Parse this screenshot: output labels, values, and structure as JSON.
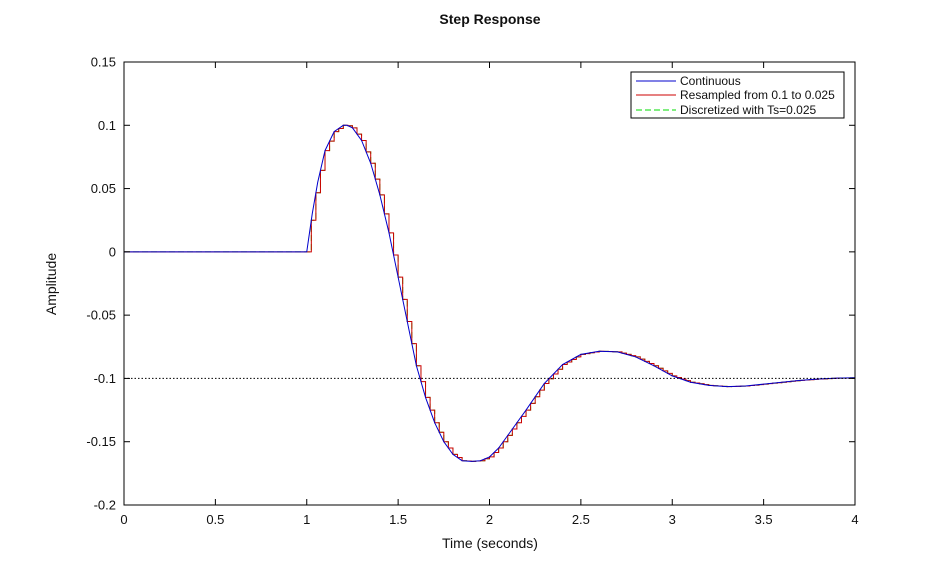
{
  "chart_data": {
    "type": "line",
    "title": "Step Response",
    "xlabel": "Time (seconds)",
    "ylabel": "Amplitude",
    "xlim": [
      0,
      4
    ],
    "ylim": [
      -0.2,
      0.15
    ],
    "xticks": [
      0,
      0.5,
      1,
      1.5,
      2,
      2.5,
      3,
      3.5,
      4
    ],
    "xtick_labels": [
      "0",
      "0.5",
      "1",
      "1.5",
      "2",
      "2.5",
      "3",
      "3.5",
      "4"
    ],
    "yticks": [
      -0.2,
      -0.15,
      -0.1,
      -0.05,
      0,
      0.05,
      0.1,
      0.15
    ],
    "ytick_labels": [
      "-0.2",
      "-0.15",
      "-0.1",
      "-0.05",
      "0",
      "0.05",
      "0.1",
      "0.15"
    ],
    "grid": false,
    "legend_position": "top-right",
    "reference_line": {
      "y": -0.1,
      "style": "dotted",
      "color": "#000000"
    },
    "series": [
      {
        "name": "Continuous",
        "color": "#0000cc",
        "style": "solid",
        "stairs": false,
        "x": [
          0,
          1.0,
          1.03,
          1.06,
          1.1,
          1.15,
          1.2,
          1.22,
          1.25,
          1.3,
          1.35,
          1.4,
          1.45,
          1.5,
          1.55,
          1.6,
          1.65,
          1.7,
          1.75,
          1.8,
          1.85,
          1.9,
          1.95,
          2.0,
          2.05,
          2.1,
          2.2,
          2.3,
          2.4,
          2.5,
          2.6,
          2.7,
          2.8,
          2.9,
          3.0,
          3.1,
          3.2,
          3.3,
          3.4,
          3.5,
          3.6,
          3.7,
          3.8,
          3.9,
          4.0
        ],
        "y": [
          0,
          0,
          0.03,
          0.055,
          0.08,
          0.095,
          0.1,
          0.1,
          0.098,
          0.088,
          0.07,
          0.045,
          0.015,
          -0.02,
          -0.055,
          -0.09,
          -0.115,
          -0.135,
          -0.15,
          -0.16,
          -0.165,
          -0.1655,
          -0.165,
          -0.162,
          -0.155,
          -0.145,
          -0.125,
          -0.104,
          -0.089,
          -0.081,
          -0.0785,
          -0.079,
          -0.083,
          -0.09,
          -0.098,
          -0.103,
          -0.1055,
          -0.1065,
          -0.106,
          -0.1045,
          -0.103,
          -0.1015,
          -0.1005,
          -0.0998,
          -0.0995
        ]
      },
      {
        "name": "Resampled from 0.1 to 0.025",
        "color": "#cc0000",
        "style": "solid",
        "stairs": true,
        "x": [
          0,
          1.0,
          1.03,
          1.06,
          1.1,
          1.15,
          1.2,
          1.22,
          1.25,
          1.3,
          1.35,
          1.4,
          1.45,
          1.5,
          1.55,
          1.6,
          1.65,
          1.7,
          1.75,
          1.8,
          1.85,
          1.9,
          1.95,
          2.0,
          2.05,
          2.1,
          2.2,
          2.3,
          2.4,
          2.5,
          2.6,
          2.7,
          2.8,
          2.9,
          3.0,
          3.1,
          3.2,
          3.3,
          3.4,
          3.5,
          3.6,
          3.7,
          3.8,
          3.9,
          4.0
        ],
        "y": [
          0,
          0,
          0.03,
          0.055,
          0.08,
          0.095,
          0.1,
          0.1,
          0.098,
          0.088,
          0.07,
          0.045,
          0.015,
          -0.02,
          -0.055,
          -0.09,
          -0.115,
          -0.135,
          -0.15,
          -0.16,
          -0.165,
          -0.1655,
          -0.165,
          -0.162,
          -0.155,
          -0.145,
          -0.125,
          -0.104,
          -0.089,
          -0.081,
          -0.0785,
          -0.079,
          -0.083,
          -0.09,
          -0.098,
          -0.103,
          -0.1055,
          -0.1065,
          -0.106,
          -0.1045,
          -0.103,
          -0.1015,
          -0.1005,
          -0.0998,
          -0.0995
        ]
      },
      {
        "name": "Discretized with Ts=0.025",
        "color": "#00dd00",
        "style": "dashed",
        "stairs": true,
        "x": [
          0,
          1.0,
          1.03,
          1.06,
          1.1,
          1.15,
          1.2,
          1.22,
          1.25,
          1.3,
          1.35,
          1.4,
          1.45,
          1.5,
          1.55,
          1.6,
          1.65,
          1.7,
          1.75,
          1.8,
          1.85,
          1.9,
          1.95,
          2.0,
          2.05,
          2.1,
          2.2,
          2.3,
          2.4,
          2.5,
          2.6,
          2.7,
          2.8,
          2.9,
          3.0,
          3.1,
          3.2,
          3.3,
          3.4,
          3.5,
          3.6,
          3.7,
          3.8,
          3.9,
          4.0
        ],
        "y": [
          0,
          0,
          0.03,
          0.055,
          0.08,
          0.095,
          0.1,
          0.1,
          0.098,
          0.088,
          0.07,
          0.045,
          0.015,
          -0.02,
          -0.055,
          -0.09,
          -0.115,
          -0.135,
          -0.15,
          -0.16,
          -0.165,
          -0.1655,
          -0.165,
          -0.162,
          -0.155,
          -0.145,
          -0.125,
          -0.104,
          -0.089,
          -0.081,
          -0.0785,
          -0.079,
          -0.083,
          -0.09,
          -0.098,
          -0.103,
          -0.1055,
          -0.1065,
          -0.106,
          -0.1045,
          -0.103,
          -0.1015,
          -0.1005,
          -0.0998,
          -0.0995
        ]
      }
    ]
  }
}
